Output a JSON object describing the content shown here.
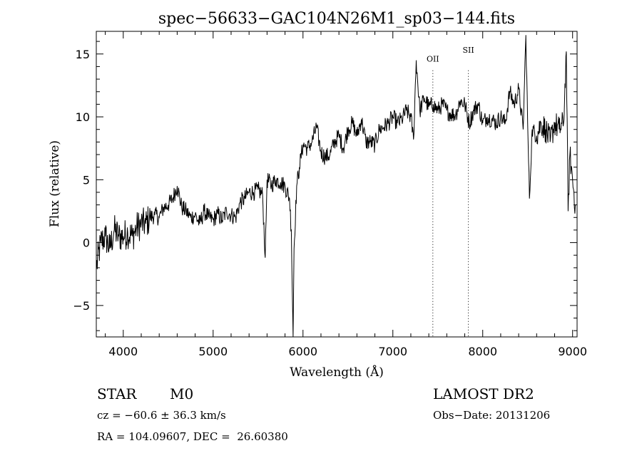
{
  "chart_data": {
    "type": "line",
    "title": "spec−56633−GAC104N26M1_sp03−144.fits",
    "xlabel": "Wavelength (Å)",
    "ylabel": "Flux (relative)",
    "xlim": [
      3700,
      9050
    ],
    "ylim": [
      -7.5,
      16.8
    ],
    "xticks": [
      4000,
      5000,
      6000,
      7000,
      8000,
      9000
    ],
    "yticks": [
      -5,
      0,
      5,
      10,
      15
    ],
    "ytick_labels": [
      "−5",
      "0",
      "5",
      "10",
      "15"
    ],
    "grid": false,
    "lines": [
      {
        "label": "OII",
        "x": 7445,
        "label_y": 14.4
      },
      {
        "label": "SII",
        "x": 7840,
        "label_y": 15.1
      }
    ],
    "series": [
      {
        "x": [
          3700,
          3750,
          3800,
          3850,
          3900,
          3950,
          4000,
          4050,
          4100,
          4150,
          4200,
          4250,
          4300,
          4350,
          4400,
          4450,
          4500,
          4550,
          4600,
          4650,
          4700,
          4750,
          4800,
          4850,
          4900,
          4950,
          5000,
          5050,
          5100,
          5150,
          5200,
          5250,
          5300,
          5350,
          5400,
          5450,
          5500,
          5550,
          5580,
          5600,
          5650,
          5700,
          5750,
          5800,
          5850,
          5870,
          5890,
          5900,
          5930,
          5960,
          6000,
          6050,
          6100,
          6150,
          6200,
          6250,
          6300,
          6350,
          6400,
          6450,
          6500,
          6550,
          6600,
          6650,
          6700,
          6750,
          6800,
          6850,
          6900,
          6950,
          7000,
          7050,
          7100,
          7150,
          7200,
          7230,
          7260,
          7300,
          7350,
          7400,
          7450,
          7500,
          7550,
          7600,
          7650,
          7700,
          7750,
          7800,
          7850,
          7900,
          7950,
          8000,
          8050,
          8100,
          8150,
          8200,
          8250,
          8300,
          8350,
          8400,
          8450,
          8480,
          8500,
          8520,
          8550,
          8600,
          8650,
          8700,
          8750,
          8800,
          8850,
          8900,
          8930,
          8950,
          8970,
          9000,
          9030
        ],
        "y": [
          -2.0,
          0.0,
          0.5,
          -0.5,
          1.0,
          0.5,
          0.5,
          0.8,
          0.5,
          1.2,
          1.5,
          1.5,
          2.0,
          2.2,
          2.0,
          2.8,
          3.0,
          3.5,
          4.5,
          2.8,
          2.5,
          2.0,
          2.2,
          1.5,
          2.5,
          2.0,
          1.8,
          2.3,
          1.8,
          2.5,
          2.2,
          2.0,
          3.2,
          3.5,
          4.0,
          4.0,
          4.2,
          3.8,
          -1.2,
          5.0,
          4.6,
          5.0,
          4.8,
          4.5,
          3.5,
          1.0,
          -7.5,
          -0.5,
          4.5,
          6.0,
          7.8,
          7.5,
          8.0,
          9.2,
          7.2,
          6.8,
          7.0,
          8.0,
          8.5,
          7.5,
          9.0,
          9.5,
          8.5,
          9.8,
          8.0,
          8.0,
          7.8,
          9.0,
          9.2,
          9.5,
          10.0,
          9.5,
          9.8,
          10.5,
          10.0,
          8.2,
          14.5,
          10.5,
          11.5,
          10.8,
          11.0,
          10.5,
          11.0,
          10.5,
          10.2,
          10.2,
          11.3,
          11.0,
          9.5,
          10.5,
          11.0,
          9.5,
          10.0,
          9.8,
          9.5,
          10.0,
          9.5,
          12.0,
          11.0,
          12.2,
          9.0,
          16.5,
          9.5,
          3.5,
          9.0,
          8.5,
          9.5,
          9.0,
          8.0,
          9.5,
          9.0,
          9.5,
          15.2,
          2.5,
          7.0,
          5.0,
          3.0
        ]
      }
    ]
  },
  "info": {
    "object_type": "STAR",
    "subclass": "M0",
    "survey": "LAMOST DR2",
    "cz": "cz = −60.6 ± 36.3 km/s",
    "obs_date": "Obs−Date: 20131206",
    "coords": "RA = 104.09607, DEC =  26.60380"
  }
}
